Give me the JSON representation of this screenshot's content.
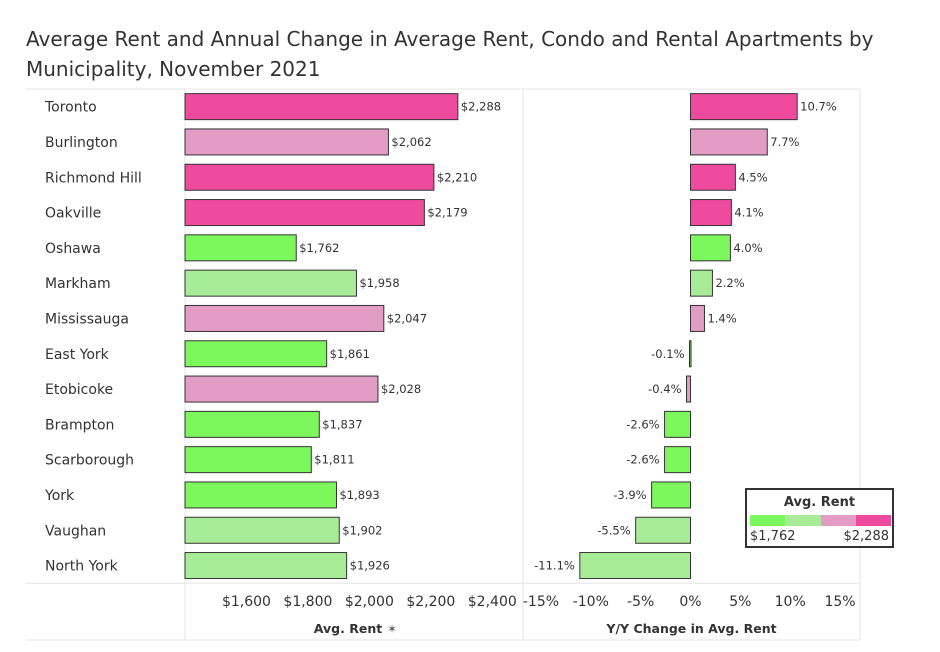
{
  "title": "Average Rent and Annual Change in Average Rent, Condo and Rental Apartments by Municipality, November 2021",
  "colors": {
    "low": "#7cf85c",
    "mid_low": "#a9ec98",
    "mid_high": "#e39cc6",
    "high": "#ee4b9f",
    "bar_stroke": "#333333",
    "grid": "#e6e6e6",
    "text": "#333333"
  },
  "chart_data": [
    {
      "type": "bar",
      "orientation": "horizontal",
      "xlabel": "Avg. Rent",
      "xlabel_icon": "pin-icon",
      "ylabel": "",
      "xlim": [
        1400,
        2500
      ],
      "ticks": [
        1600,
        1800,
        2000,
        2200,
        2400
      ],
      "tick_labels": [
        "$1,600",
        "$1,800",
        "$2,000",
        "$2,200",
        "$2,400"
      ],
      "categories": [
        "Toronto",
        "Burlington",
        "Richmond Hill",
        "Oakville",
        "Oshawa",
        "Markham",
        "Mississauga",
        "East York",
        "Etobicoke",
        "Brampton",
        "Scarborough",
        "York",
        "Vaughan",
        "North York"
      ],
      "values": [
        2288,
        2062,
        2210,
        2179,
        1762,
        1958,
        2047,
        1861,
        2028,
        1837,
        1811,
        1893,
        1902,
        1926
      ],
      "data_labels": [
        "$2,288",
        "$2,062",
        "$2,210",
        "$2,179",
        "$1,762",
        "$1,958",
        "$2,047",
        "$1,861",
        "$2,028",
        "$1,837",
        "$1,811",
        "$1,893",
        "$1,902",
        "$1,926"
      ],
      "grid": false
    },
    {
      "type": "bar",
      "orientation": "horizontal",
      "xlabel": "Y/Y Change in Avg. Rent",
      "ylabel": "",
      "xlim": [
        -16.8,
        17
      ],
      "ticks": [
        -15,
        -10,
        -5,
        0,
        5,
        10,
        15
      ],
      "tick_labels": [
        "-15%",
        "-10%",
        "-5%",
        "0%",
        "5%",
        "10%",
        "15%"
      ],
      "categories": [
        "Toronto",
        "Burlington",
        "Richmond Hill",
        "Oakville",
        "Oshawa",
        "Markham",
        "Mississauga",
        "East York",
        "Etobicoke",
        "Brampton",
        "Scarborough",
        "York",
        "Vaughan",
        "North York"
      ],
      "values": [
        10.7,
        7.7,
        4.5,
        4.1,
        4.0,
        2.2,
        1.4,
        -0.1,
        -0.4,
        -2.6,
        -2.6,
        -3.9,
        -5.5,
        -11.1
      ],
      "data_labels": [
        "10.7%",
        "7.7%",
        "4.5%",
        "4.1%",
        "4.0%",
        "2.2%",
        "1.4%",
        "-0.1%",
        "-0.4%",
        "-2.6%",
        "-2.6%",
        "-3.9%",
        "-5.5%",
        "-11.1%"
      ],
      "color_by": "Avg. Rent",
      "grid": false
    }
  ],
  "legend": {
    "title": "Avg. Rent",
    "min_label": "$1,762",
    "max_label": "$2,288",
    "placement": "bottom-right"
  }
}
